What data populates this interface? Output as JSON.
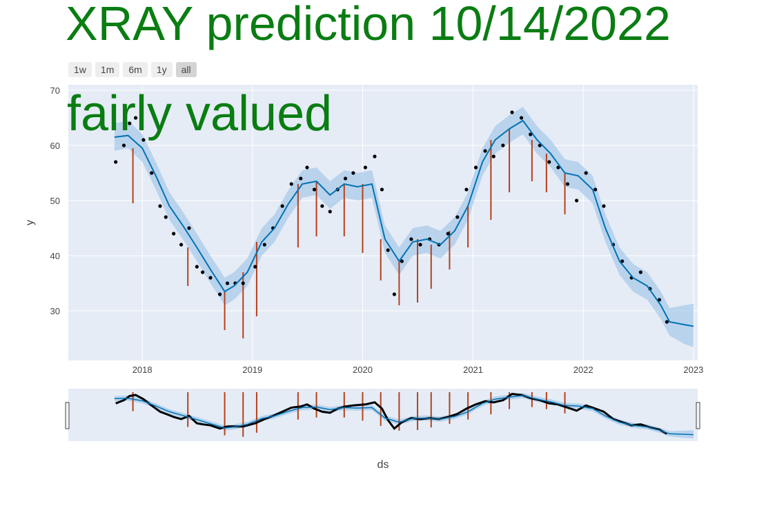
{
  "title": "XRAY prediction 10/14/2022",
  "annotation": "fairly valued",
  "range_buttons": [
    "1w",
    "1m",
    "6m",
    "1y",
    "all"
  ],
  "active_button": "all",
  "colors": {
    "background": "#e5ecf6",
    "forecast_line": "#0072b2",
    "uncertainty_band": "#a9cbe9",
    "actual_points": "#000000",
    "changepoints": "#b5401a",
    "title_text": "#0a7d12"
  },
  "chart_data": {
    "type": "line",
    "title": "XRAY prediction 10/14/2022",
    "xlabel": "ds",
    "ylabel": "y",
    "x_ticks": [
      "2018",
      "2019",
      "2020",
      "2021",
      "2022",
      "2023"
    ],
    "y_ticks": [
      30,
      40,
      50,
      60,
      70
    ],
    "xlim": [
      "2017-05-01",
      "2023-01-15"
    ],
    "ylim": [
      21,
      71
    ],
    "grid": true,
    "range_slider": true,
    "series": [
      {
        "kind": "forecast",
        "x": [
          "2017-10-01",
          "2017-11-15",
          "2018-01-01",
          "2018-02-15",
          "2018-04-01",
          "2018-05-15",
          "2018-07-01",
          "2018-08-15",
          "2018-10-01",
          "2018-11-01",
          "2018-12-15",
          "2019-02-01",
          "2019-03-15",
          "2019-05-01",
          "2019-06-15",
          "2019-08-01",
          "2019-09-15",
          "2019-11-01",
          "2019-12-15",
          "2020-02-01",
          "2020-03-15",
          "2020-05-01",
          "2020-06-15",
          "2020-08-01",
          "2020-09-15",
          "2020-11-01",
          "2020-12-15",
          "2021-02-01",
          "2021-03-15",
          "2021-05-01",
          "2021-06-15",
          "2021-08-01",
          "2021-09-15",
          "2021-11-01",
          "2021-12-15",
          "2022-02-01",
          "2022-03-15",
          "2022-05-01",
          "2022-06-15",
          "2022-08-01",
          "2022-09-15",
          "2022-10-14",
          "2022-12-01",
          "2023-01-01"
        ],
        "yhat": [
          61.5,
          61.8,
          59.5,
          54.5,
          49,
          45.5,
          41.5,
          37.5,
          33.5,
          34.5,
          37,
          42.5,
          45,
          49.5,
          53,
          53.5,
          51,
          53,
          52.5,
          53,
          43,
          39,
          42.5,
          43,
          42,
          44.5,
          49,
          57,
          61,
          63,
          64.5,
          61,
          58.5,
          55,
          54.5,
          52,
          45,
          39,
          36,
          34.5,
          31,
          28,
          27.5,
          27.2
        ],
        "yhat_lower": [
          59,
          59.5,
          57,
          52,
          46.5,
          43,
          39,
          35,
          31,
          32,
          34.5,
          40,
          42.5,
          47,
          50.5,
          51,
          48.5,
          50.5,
          50,
          50.5,
          40.5,
          36.5,
          40,
          40.5,
          39.5,
          42,
          46.5,
          54.5,
          58.5,
          60.5,
          62,
          58.5,
          56,
          52.5,
          52,
          49.5,
          42.5,
          36.5,
          33.5,
          32,
          28.5,
          25.5,
          24,
          23.4
        ],
        "yhat_upper": [
          64,
          64.5,
          62,
          57,
          51.5,
          48,
          44,
          40,
          36,
          37,
          39.5,
          45,
          47.5,
          52,
          55.5,
          56,
          53.5,
          55.5,
          55,
          55.5,
          45.5,
          41.5,
          45,
          45.5,
          44.5,
          47,
          51.5,
          59.5,
          63.5,
          65.5,
          67,
          63.5,
          61,
          57.5,
          57,
          54.5,
          47.5,
          41.5,
          38.5,
          37,
          33.5,
          30.5,
          31,
          31.3
        ]
      },
      {
        "kind": "actual",
        "x": [
          "2017-10-05",
          "2017-11-01",
          "2017-11-20",
          "2017-12-10",
          "2018-01-05",
          "2018-02-01",
          "2018-03-01",
          "2018-03-20",
          "2018-04-15",
          "2018-05-10",
          "2018-06-05",
          "2018-07-01",
          "2018-07-20",
          "2018-08-15",
          "2018-09-15",
          "2018-10-10",
          "2018-11-05",
          "2018-12-01",
          "2019-01-10",
          "2019-02-10",
          "2019-03-10",
          "2019-04-10",
          "2019-05-10",
          "2019-06-10",
          "2019-07-01",
          "2019-07-25",
          "2019-08-20",
          "2019-09-15",
          "2019-10-10",
          "2019-11-05",
          "2019-12-01",
          "2020-01-10",
          "2020-02-10",
          "2020-03-05",
          "2020-03-25",
          "2020-04-15",
          "2020-05-10",
          "2020-06-10",
          "2020-07-10",
          "2020-08-10",
          "2020-09-10",
          "2020-10-10",
          "2020-11-10",
          "2020-12-10",
          "2021-01-10",
          "2021-02-10",
          "2021-03-10",
          "2021-04-10",
          "2021-05-10",
          "2021-06-10",
          "2021-07-10",
          "2021-08-10",
          "2021-09-10",
          "2021-10-10",
          "2021-11-10",
          "2021-12-10",
          "2022-01-10",
          "2022-02-10",
          "2022-03-10",
          "2022-04-10",
          "2022-05-10",
          "2022-06-10",
          "2022-07-10",
          "2022-08-10",
          "2022-09-10",
          "2022-10-05"
        ],
        "y": [
          57,
          60,
          64,
          65,
          61,
          55,
          49,
          47,
          44,
          42,
          45,
          38,
          37,
          36,
          33,
          35,
          35,
          35,
          38,
          42,
          45,
          49,
          53,
          54,
          56,
          52,
          49,
          48,
          52,
          54,
          55,
          56,
          58,
          52,
          41,
          33,
          39,
          43,
          42,
          43,
          42,
          44,
          47,
          52,
          56,
          59,
          58,
          60,
          66,
          65,
          62,
          60,
          57,
          56,
          53,
          50,
          55,
          52,
          49,
          42,
          39,
          36,
          37,
          34,
          32,
          28
        ]
      }
    ],
    "changepoints": [
      "2017-12-01",
      "2018-06-01",
      "2018-10-01",
      "2018-12-01",
      "2019-01-15",
      "2019-06-01",
      "2019-08-01",
      "2019-11-01",
      "2020-01-01",
      "2020-03-01",
      "2020-05-01",
      "2020-07-01",
      "2020-08-15",
      "2020-10-15",
      "2020-12-15",
      "2021-03-01",
      "2021-05-01",
      "2021-07-15",
      "2021-09-01",
      "2021-11-01"
    ],
    "changepoint_lows": [
      49.5,
      34.5,
      26.5,
      25,
      29,
      41.5,
      43.5,
      43.5,
      40.5,
      35.5,
      31,
      31.5,
      34,
      37.5,
      41.5,
      46.5,
      51.5,
      53.5,
      51.5,
      47.5
    ]
  }
}
